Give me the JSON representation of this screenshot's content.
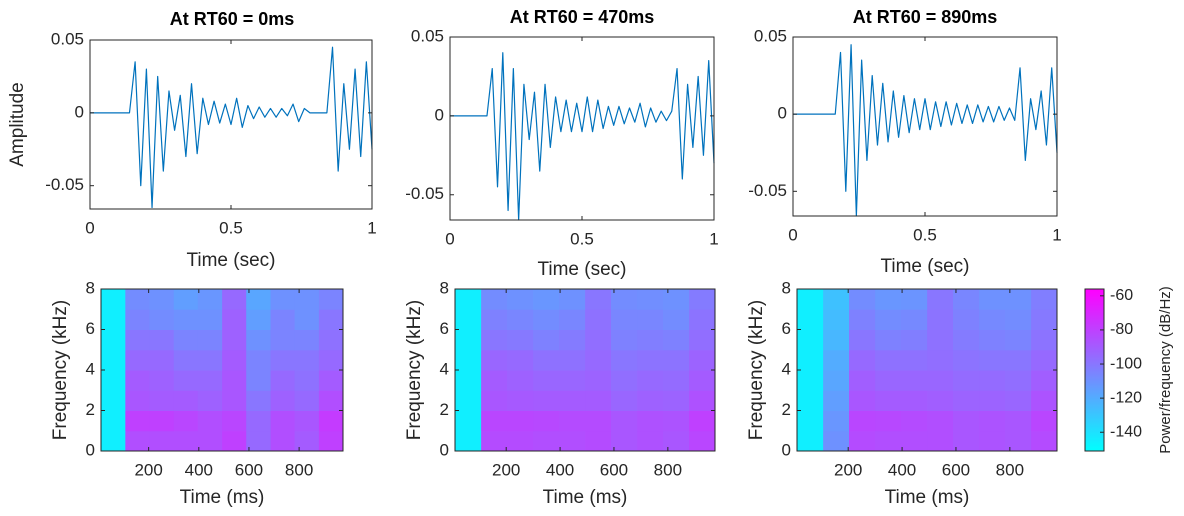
{
  "chart_data": [
    {
      "type": "line",
      "title": "At RT60 = 0ms",
      "xlabel": "Time (sec)",
      "ylabel": "Amplitude",
      "color": "#0072bd",
      "x": [
        0,
        0.02,
        0.04,
        0.06,
        0.08,
        0.1,
        0.12,
        0.14,
        0.16,
        0.18,
        0.2,
        0.22,
        0.24,
        0.26,
        0.28,
        0.3,
        0.32,
        0.34,
        0.36,
        0.38,
        0.4,
        0.42,
        0.44,
        0.46,
        0.48,
        0.5,
        0.52,
        0.54,
        0.56,
        0.58,
        0.6,
        0.62,
        0.64,
        0.66,
        0.68,
        0.7,
        0.72,
        0.74,
        0.76,
        0.78,
        0.8,
        0.82,
        0.84,
        0.86,
        0.88,
        0.9,
        0.92,
        0.94,
        0.96,
        0.98,
        1
      ],
      "values": [
        0,
        0,
        0,
        0,
        0,
        0,
        0,
        0,
        0.035,
        -0.05,
        0.03,
        -0.065,
        0.025,
        -0.04,
        0.015,
        -0.012,
        0.012,
        -0.03,
        0.02,
        -0.028,
        0.01,
        -0.008,
        0.008,
        -0.007,
        0.006,
        -0.008,
        0.01,
        -0.01,
        0.005,
        -0.004,
        0.004,
        -0.003,
        0.003,
        -0.003,
        0.003,
        -0.002,
        0.006,
        -0.006,
        0.003,
        0,
        0,
        0,
        0,
        0.045,
        -0.04,
        0.02,
        -0.025,
        0.03,
        -0.03,
        0.035,
        -0.025
      ],
      "xlim": [
        0,
        1
      ],
      "xticks": [
        0,
        0.5,
        1
      ],
      "ylim": [
        -0.066,
        0.05
      ],
      "yticks": [
        -0.05,
        0,
        0.05
      ]
    },
    {
      "type": "line",
      "title": "At RT60 = 470ms",
      "xlabel": "Time (sec)",
      "color": "#0072bd",
      "x": [
        0,
        0.02,
        0.04,
        0.06,
        0.08,
        0.1,
        0.12,
        0.14,
        0.16,
        0.18,
        0.2,
        0.22,
        0.24,
        0.26,
        0.28,
        0.3,
        0.32,
        0.34,
        0.36,
        0.38,
        0.4,
        0.42,
        0.44,
        0.46,
        0.48,
        0.5,
        0.52,
        0.54,
        0.56,
        0.58,
        0.6,
        0.62,
        0.64,
        0.66,
        0.68,
        0.7,
        0.72,
        0.74,
        0.76,
        0.78,
        0.8,
        0.82,
        0.84,
        0.86,
        0.88,
        0.9,
        0.92,
        0.94,
        0.96,
        0.98,
        1
      ],
      "values": [
        0,
        0,
        0,
        0,
        0,
        0,
        0,
        0,
        0.03,
        -0.045,
        0.04,
        -0.06,
        0.03,
        -0.066,
        0.02,
        -0.015,
        0.015,
        -0.035,
        0.02,
        -0.02,
        0.012,
        -0.01,
        0.01,
        -0.01,
        0.008,
        -0.01,
        0.012,
        -0.01,
        0.01,
        -0.008,
        0.006,
        -0.006,
        0.006,
        -0.005,
        0.005,
        -0.004,
        0.008,
        -0.007,
        0.005,
        -0.004,
        0.003,
        -0.003,
        0.003,
        0.03,
        -0.04,
        0.02,
        -0.02,
        0.025,
        -0.025,
        0.035,
        -0.03
      ],
      "xlim": [
        0,
        1
      ],
      "xticks": [
        0,
        0.5,
        1
      ],
      "ylim": [
        -0.066,
        0.05
      ],
      "yticks": [
        -0.05,
        0,
        0.05
      ]
    },
    {
      "type": "line",
      "title": "At RT60 = 890ms",
      "xlabel": "Time (sec)",
      "color": "#0072bd",
      "x": [
        0,
        0.02,
        0.04,
        0.06,
        0.08,
        0.1,
        0.12,
        0.14,
        0.16,
        0.18,
        0.2,
        0.22,
        0.24,
        0.26,
        0.28,
        0.3,
        0.32,
        0.34,
        0.36,
        0.38,
        0.4,
        0.42,
        0.44,
        0.46,
        0.48,
        0.5,
        0.52,
        0.54,
        0.56,
        0.58,
        0.6,
        0.62,
        0.64,
        0.66,
        0.68,
        0.7,
        0.72,
        0.74,
        0.76,
        0.78,
        0.8,
        0.82,
        0.84,
        0.86,
        0.88,
        0.9,
        0.92,
        0.94,
        0.96,
        0.98,
        1
      ],
      "values": [
        0,
        0,
        0,
        0,
        0,
        0,
        0,
        0,
        0,
        0.04,
        -0.05,
        0.045,
        -0.066,
        0.035,
        -0.03,
        0.025,
        -0.02,
        0.02,
        -0.018,
        0.015,
        -0.015,
        0.012,
        -0.012,
        0.01,
        -0.01,
        0.01,
        -0.01,
        0.008,
        -0.008,
        0.008,
        -0.007,
        0.007,
        -0.006,
        0.006,
        -0.006,
        0.006,
        -0.005,
        0.005,
        -0.005,
        0.005,
        -0.004,
        0.004,
        -0.004,
        0.03,
        -0.03,
        0.01,
        -0.01,
        0.015,
        -0.02,
        0.03,
        -0.025
      ],
      "xlim": [
        0,
        1
      ],
      "xticks": [
        0,
        0.5,
        1
      ],
      "ylim": [
        -0.066,
        0.05
      ],
      "yticks": [
        -0.05,
        0,
        0.05
      ]
    },
    {
      "type": "heatmap",
      "xlabel": "Time (ms)",
      "ylabel": "Frequency (kHz)",
      "colormap": [
        "#00ffff",
        "#ff00ff"
      ],
      "clim": [
        -151,
        -56
      ],
      "x_edges": [
        10,
        107,
        203,
        300,
        396,
        493,
        589,
        686,
        782,
        879,
        975
      ],
      "y_edges": [
        0,
        1,
        2,
        3,
        4,
        5,
        6,
        7,
        8
      ],
      "z": [
        [
          -145,
          -85,
          -85,
          -85,
          -85,
          -80,
          -95,
          -85,
          -90,
          -80
        ],
        [
          -145,
          -80,
          -80,
          -82,
          -85,
          -82,
          -95,
          -85,
          -88,
          -78
        ],
        [
          -145,
          -88,
          -90,
          -90,
          -92,
          -88,
          -100,
          -92,
          -95,
          -85
        ],
        [
          -145,
          -90,
          -92,
          -95,
          -95,
          -88,
          -105,
          -95,
          -98,
          -90
        ],
        [
          -145,
          -95,
          -95,
          -100,
          -100,
          -90,
          -105,
          -100,
          -100,
          -95
        ],
        [
          -145,
          -100,
          -100,
          -105,
          -105,
          -92,
          -110,
          -105,
          -105,
          -98
        ],
        [
          -145,
          -105,
          -108,
          -110,
          -110,
          -92,
          -115,
          -105,
          -110,
          -100
        ],
        [
          -145,
          -108,
          -110,
          -115,
          -112,
          -95,
          -118,
          -110,
          -110,
          -105
        ]
      ],
      "xlim": [
        10,
        975
      ],
      "xticks": [
        200,
        400,
        600,
        800
      ],
      "ylim": [
        0,
        8
      ],
      "yticks": [
        0,
        2,
        4,
        6,
        8
      ]
    },
    {
      "type": "heatmap",
      "xlabel": "Time (ms)",
      "ylabel": "Frequency (kHz)",
      "colormap": [
        "#00ffff",
        "#ff00ff"
      ],
      "clim": [
        -151,
        -56
      ],
      "x_edges": [
        10,
        107,
        203,
        300,
        396,
        493,
        589,
        686,
        782,
        879,
        975
      ],
      "y_edges": [
        0,
        1,
        2,
        3,
        4,
        5,
        6,
        7,
        8
      ],
      "z": [
        [
          -145,
          -84,
          -84,
          -85,
          -85,
          -84,
          -88,
          -86,
          -88,
          -82
        ],
        [
          -145,
          -82,
          -82,
          -83,
          -84,
          -84,
          -88,
          -86,
          -87,
          -80
        ],
        [
          -145,
          -88,
          -89,
          -90,
          -90,
          -90,
          -94,
          -92,
          -93,
          -86
        ],
        [
          -145,
          -90,
          -92,
          -94,
          -94,
          -93,
          -97,
          -95,
          -96,
          -90
        ],
        [
          -145,
          -94,
          -95,
          -98,
          -98,
          -95,
          -100,
          -99,
          -99,
          -93
        ],
        [
          -145,
          -100,
          -101,
          -104,
          -102,
          -97,
          -104,
          -103,
          -104,
          -97
        ],
        [
          -145,
          -104,
          -106,
          -108,
          -106,
          -98,
          -106,
          -106,
          -108,
          -99
        ],
        [
          -145,
          -108,
          -110,
          -112,
          -110,
          -100,
          -108,
          -109,
          -110,
          -102
        ]
      ],
      "xlim": [
        10,
        975
      ],
      "xticks": [
        200,
        400,
        600,
        800
      ],
      "ylim": [
        0,
        8
      ],
      "yticks": [
        0,
        2,
        4,
        6,
        8
      ]
    },
    {
      "type": "heatmap",
      "xlabel": "Time (ms)",
      "ylabel": "Frequency (kHz)",
      "colormap": [
        "#00ffff",
        "#ff00ff"
      ],
      "clim": [
        -151,
        -56
      ],
      "x_edges": [
        10,
        107,
        203,
        300,
        396,
        493,
        589,
        686,
        782,
        879,
        975
      ],
      "y_edges": [
        0,
        1,
        2,
        3,
        4,
        5,
        6,
        7,
        8
      ],
      "z": [
        [
          -145,
          -110,
          -84,
          -85,
          -85,
          -85,
          -88,
          -87,
          -88,
          -84
        ],
        [
          -145,
          -112,
          -82,
          -83,
          -84,
          -85,
          -88,
          -87,
          -88,
          -82
        ],
        [
          -145,
          -115,
          -88,
          -90,
          -90,
          -91,
          -93,
          -93,
          -94,
          -87
        ],
        [
          -145,
          -118,
          -91,
          -94,
          -94,
          -94,
          -96,
          -96,
          -97,
          -91
        ],
        [
          -145,
          -120,
          -95,
          -98,
          -98,
          -97,
          -99,
          -100,
          -100,
          -95
        ],
        [
          -145,
          -124,
          -100,
          -104,
          -103,
          -98,
          -102,
          -104,
          -105,
          -99
        ],
        [
          -145,
          -126,
          -104,
          -108,
          -107,
          -99,
          -104,
          -107,
          -108,
          -101
        ],
        [
          -145,
          -128,
          -108,
          -112,
          -111,
          -100,
          -106,
          -110,
          -110,
          -103
        ]
      ],
      "xlim": [
        10,
        975
      ],
      "xticks": [
        200,
        400,
        600,
        800
      ],
      "ylim": [
        0,
        8
      ],
      "yticks": [
        0,
        2,
        4,
        6,
        8
      ],
      "colorbar": {
        "label": "Power/frequency (dB/Hz)",
        "ticks": [
          -140,
          -120,
          -100,
          -80,
          -60
        ]
      }
    }
  ]
}
